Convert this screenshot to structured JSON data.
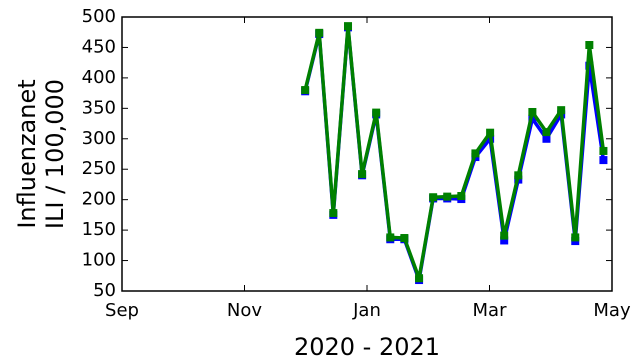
{
  "chart_data": {
    "type": "line",
    "ylabel": [
      "Influenzanet",
      "ILI / 100,000"
    ],
    "xlabel": "2020 - 2021",
    "x": [
      2.99,
      3.22,
      3.45,
      3.69,
      3.92,
      4.15,
      4.38,
      4.61,
      4.85,
      5.08,
      5.31,
      5.54,
      5.77,
      6.01,
      6.24,
      6.47,
      6.7,
      6.93,
      7.17,
      7.4,
      7.63,
      7.86
    ],
    "series": [
      {
        "color": "#0000ff",
        "values": [
          378,
          472,
          175,
          483,
          240,
          340,
          135,
          135,
          68,
          202,
          202,
          201,
          270,
          300,
          133,
          233,
          333,
          300,
          340,
          132,
          420,
          265
        ]
      },
      {
        "color": "#008000",
        "values": [
          380,
          474,
          178,
          485,
          242,
          343,
          138,
          137,
          71,
          204,
          205,
          206,
          276,
          310,
          141,
          240,
          344,
          311,
          347,
          138,
          454,
          280
        ]
      }
    ],
    "xlim": [
      0,
      8
    ],
    "xticks": [
      {
        "value": 0,
        "label": "Sep"
      },
      {
        "value": 2,
        "label": "Nov"
      },
      {
        "value": 4,
        "label": "Jan"
      },
      {
        "value": 6,
        "label": "Mar"
      },
      {
        "value": 8,
        "label": "May"
      }
    ],
    "ylim": [
      50,
      500
    ],
    "yticks": [
      50,
      100,
      150,
      200,
      250,
      300,
      350,
      400,
      450,
      500
    ]
  }
}
